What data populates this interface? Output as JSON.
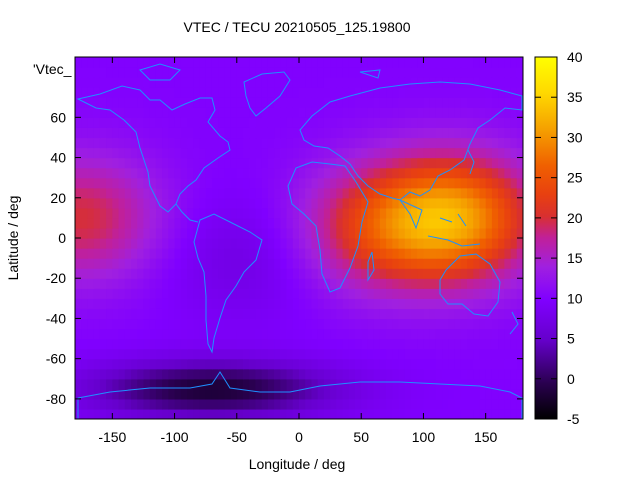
{
  "chart_data": {
    "type": "heatmap",
    "title": "VTEC / TECU 20210505_125.19800",
    "xlabel": "Longitude / deg",
    "ylabel": "Latitude / deg",
    "xlim": [
      -180,
      180
    ],
    "ylim": [
      -90,
      90
    ],
    "xticks": [
      -150,
      -100,
      -50,
      0,
      50,
      100,
      150
    ],
    "yticks": [
      60,
      40,
      20,
      0,
      -20,
      -40,
      -60,
      -80
    ],
    "top_label": "'Vtec_",
    "colorbar": {
      "range": [
        -5,
        40
      ],
      "ticks": [
        40,
        35,
        30,
        25,
        20,
        15,
        10,
        5,
        0,
        -5
      ]
    },
    "field_features": [
      {
        "name": "asia-pacific-peak",
        "lon": 125,
        "lat": 10,
        "value": 30
      },
      {
        "name": "indian-ocean-high",
        "lon": 60,
        "lat": 5,
        "value": 20
      },
      {
        "name": "pacific-dateline-high",
        "lon": -175,
        "lat": 10,
        "value": 20
      },
      {
        "name": "south-america-low",
        "lon": -45,
        "lat": -10,
        "value": 7
      },
      {
        "name": "antarctic-low",
        "lon": -70,
        "lat": -75,
        "value": -2
      }
    ],
    "background_value": 10,
    "overlay": "coastlines"
  },
  "colors": {
    "plot_border": "#000000",
    "coastline": "#1e90ff",
    "background": "#ffffff"
  }
}
